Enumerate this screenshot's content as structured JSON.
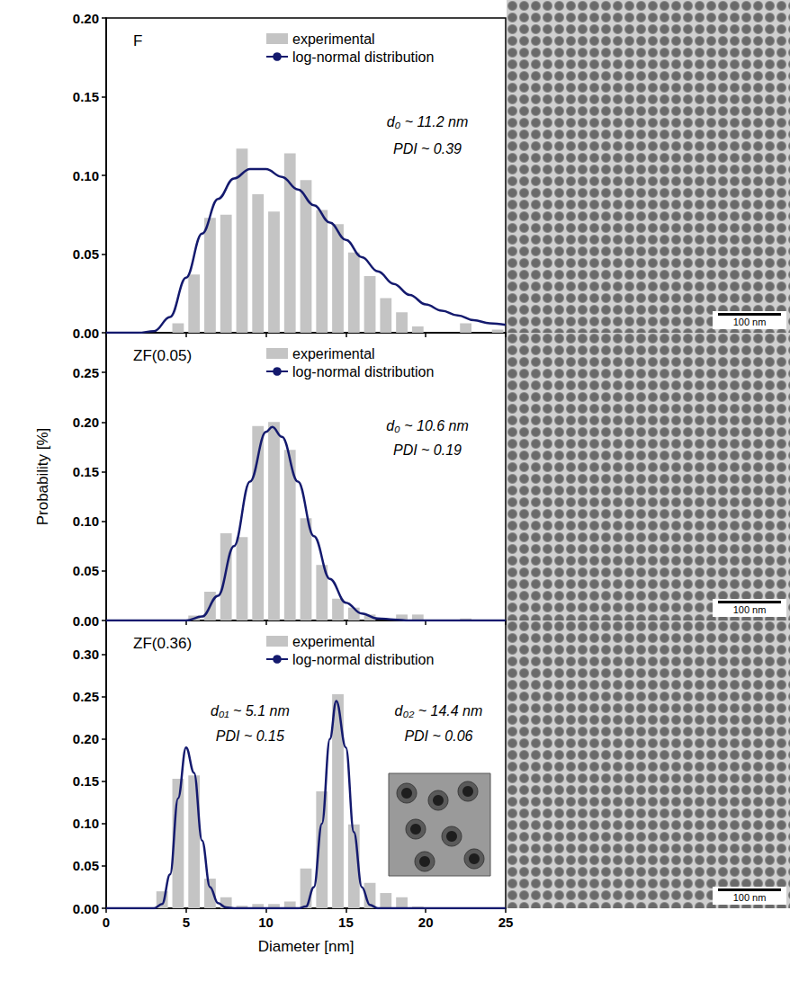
{
  "chart_data": [
    {
      "type": "histogram",
      "title": "F",
      "legend": "top",
      "tick_labels": "y",
      "xlim": [
        0,
        25
      ],
      "xticks": [
        0,
        5,
        10,
        15,
        20,
        25
      ],
      "ylim": [
        0,
        0.2
      ],
      "yticks": [
        {
          "value": 0,
          "label": "0.00"
        },
        {
          "value": 0.05,
          "label": "0.05"
        },
        {
          "value": 0.1,
          "label": "0.10"
        },
        {
          "value": 0.15,
          "label": "0.15"
        },
        {
          "value": 0.2,
          "label": "0.20"
        }
      ],
      "bins": [
        4,
        5,
        6,
        7,
        8,
        9,
        10,
        11,
        12,
        13,
        14,
        15,
        16,
        17,
        18,
        19,
        20,
        21,
        22,
        23,
        24,
        25
      ],
      "series": [
        {
          "name": "experimental",
          "type": "bar",
          "color": "#c4c4c4",
          "values": [
            0.006,
            0.037,
            0.073,
            0.075,
            0.117,
            0.088,
            0.077,
            0.114,
            0.097,
            0.078,
            0.069,
            0.051,
            0.036,
            0.022,
            0.013,
            0.004,
            0,
            0,
            0.006,
            0,
            0.002
          ]
        },
        {
          "name": "log-normal distribution",
          "type": "line",
          "color": "#141a6e",
          "x": [
            0,
            2,
            3,
            4,
            5,
            6,
            7,
            8,
            9,
            10,
            11,
            12,
            13,
            14,
            15,
            16,
            17,
            18,
            19,
            20,
            21,
            22,
            23,
            24,
            25
          ],
          "values": [
            0,
            0,
            0.001,
            0.01,
            0.035,
            0.063,
            0.085,
            0.098,
            0.104,
            0.104,
            0.099,
            0.091,
            0.081,
            0.07,
            0.059,
            0.048,
            0.039,
            0.031,
            0.024,
            0.018,
            0.014,
            0.011,
            0.008,
            0.006,
            0.005
          ]
        }
      ],
      "annotations": [
        {
          "text": "d₀ ~ 11.2 nm",
          "x": 20.1,
          "y": 0.134
        },
        {
          "text": "PDI ~ 0.39",
          "x": 20.1,
          "y": 0.117
        }
      ]
    },
    {
      "type": "histogram",
      "title": "ZF(0.05)",
      "legend": "top",
      "tick_labels": "y",
      "ylabel": "Probability [%]",
      "xlim": [
        0,
        25
      ],
      "xticks": [
        0,
        5,
        10,
        15,
        20,
        25
      ],
      "ylim": [
        0,
        0.29
      ],
      "yticks": [
        {
          "value": 0,
          "label": "0.00"
        },
        {
          "value": 0.05,
          "label": "0.05"
        },
        {
          "value": 0.1,
          "label": "0.10"
        },
        {
          "value": 0.15,
          "label": "0.15"
        },
        {
          "value": 0.2,
          "label": "0.20"
        },
        {
          "value": 0.25,
          "label": "0.25"
        }
      ],
      "bins": [
        5,
        6,
        7,
        8,
        9,
        10,
        11,
        12,
        13,
        14,
        15,
        16,
        17,
        18,
        19,
        20,
        21,
        22,
        23
      ],
      "series": [
        {
          "name": "experimental",
          "type": "bar",
          "color": "#c4c4c4",
          "values": [
            0.005,
            0.029,
            0.088,
            0.084,
            0.196,
            0.2,
            0.172,
            0.103,
            0.056,
            0.022,
            0.013,
            0.006,
            0,
            0.006,
            0.006,
            0,
            0,
            0.002
          ]
        },
        {
          "name": "log-normal distribution",
          "type": "line",
          "color": "#141a6e",
          "x": [
            0,
            5,
            6,
            7,
            8,
            9,
            10,
            10.4,
            11,
            12,
            13,
            14,
            15,
            16,
            17,
            18,
            19,
            25
          ],
          "values": [
            0,
            0,
            0.004,
            0.025,
            0.075,
            0.14,
            0.19,
            0.195,
            0.185,
            0.14,
            0.085,
            0.042,
            0.018,
            0.007,
            0.002,
            0.001,
            0,
            0
          ]
        }
      ],
      "annotations": [
        {
          "text": "d₀ ~ 10.6 nm",
          "x": 20.1,
          "y": 0.196
        },
        {
          "text": "PDI ~ 0.19",
          "x": 20.1,
          "y": 0.172
        }
      ]
    },
    {
      "type": "histogram",
      "title": "ZF(0.36)",
      "legend": "top",
      "xlabel": "Diameter [nm]",
      "xlim": [
        0,
        25
      ],
      "xticks": [
        0,
        5,
        10,
        15,
        20,
        25
      ],
      "ylim": [
        0,
        0.34
      ],
      "yticks": [
        {
          "value": 0,
          "label": "0.00"
        },
        {
          "value": 0.05,
          "label": "0.05"
        },
        {
          "value": 0.1,
          "label": "0.10"
        },
        {
          "value": 0.15,
          "label": "0.15"
        },
        {
          "value": 0.2,
          "label": "0.20"
        },
        {
          "value": 0.25,
          "label": "0.25"
        },
        {
          "value": 0.3,
          "label": "0.30"
        }
      ],
      "bins": [
        3,
        4,
        5,
        6,
        7,
        8,
        9,
        10,
        11,
        12,
        13,
        14,
        15,
        16,
        17,
        18,
        19,
        20
      ],
      "series": [
        {
          "name": "experimental",
          "type": "bar",
          "color": "#c4c4c4",
          "values": [
            0.02,
            0.153,
            0.157,
            0.035,
            0.013,
            0.003,
            0.005,
            0.005,
            0.008,
            0.047,
            0.138,
            0.253,
            0.099,
            0.03,
            0.018,
            0.013,
            0.002
          ]
        },
        {
          "name": "log-normal distribution",
          "type": "line",
          "color": "#141a6e",
          "x": [
            0,
            3,
            3.5,
            4,
            4.5,
            5,
            5.5,
            6,
            6.5,
            7,
            7.5,
            8,
            12,
            12.5,
            13,
            13.5,
            14,
            14.4,
            15,
            15.5,
            16,
            16.5,
            17,
            25
          ],
          "values": [
            0,
            0,
            0.005,
            0.04,
            0.13,
            0.19,
            0.16,
            0.08,
            0.025,
            0.006,
            0.001,
            0,
            0,
            0.002,
            0.025,
            0.1,
            0.2,
            0.245,
            0.19,
            0.09,
            0.025,
            0.004,
            0,
            0
          ]
        }
      ],
      "annotations": [
        {
          "text": "d₀₁ ~ 5.1 nm",
          "x": 9.0,
          "y": 0.233
        },
        {
          "text": "PDI ~ 0.15",
          "x": 9.0,
          "y": 0.204
        },
        {
          "text": "d₀₂ ~ 14.4 nm",
          "x": 20.8,
          "y": 0.233
        },
        {
          "text": "PDI ~ 0.06",
          "x": 20.8,
          "y": 0.204
        }
      ]
    }
  ],
  "images": [
    {
      "scale_bar": "100 nm"
    },
    {
      "scale_bar": "100 nm"
    },
    {
      "scale_bar": "100 nm"
    }
  ]
}
